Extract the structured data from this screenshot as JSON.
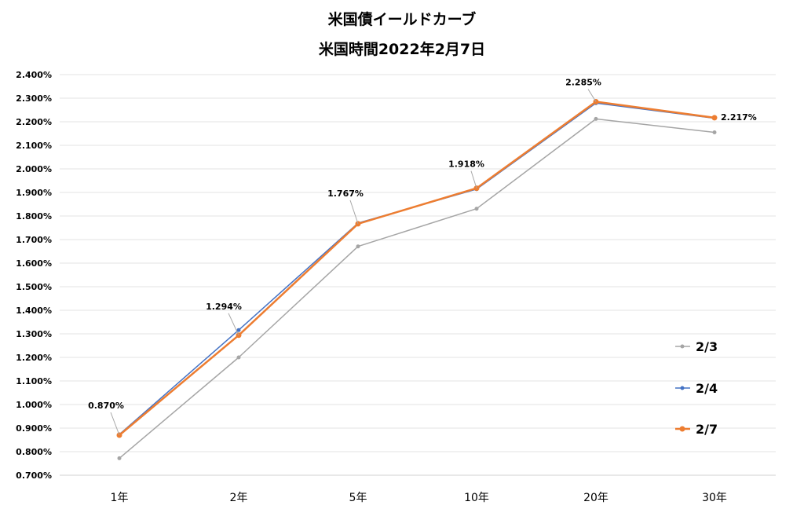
{
  "chart_data": {
    "type": "line",
    "title": "米国債イールドカーブ",
    "subtitle": "米国時間2022年2月7日",
    "categories": [
      "1年",
      "2年",
      "5年",
      "10年",
      "20年",
      "30年"
    ],
    "ylim": [
      0.7,
      2.4
    ],
    "yticks": [
      "0.700%",
      "0.800%",
      "0.900%",
      "1.000%",
      "1.100%",
      "1.200%",
      "1.300%",
      "1.400%",
      "1.500%",
      "1.600%",
      "1.700%",
      "1.800%",
      "1.900%",
      "2.000%",
      "2.100%",
      "2.200%",
      "2.300%",
      "2.400%"
    ],
    "grid": true,
    "legend_position": "right",
    "series": [
      {
        "name": "2/3",
        "color": "#a5a5a5",
        "values": [
          0.772,
          1.2,
          1.671,
          1.831,
          2.212,
          2.155
        ]
      },
      {
        "name": "2/4",
        "color": "#4472c4",
        "values": [
          0.873,
          1.316,
          1.77,
          1.914,
          2.279,
          2.215
        ]
      },
      {
        "name": "2/7",
        "color": "#ed7d31",
        "values": [
          0.87,
          1.294,
          1.767,
          1.918,
          2.285,
          2.217
        ]
      }
    ],
    "data_labels": [
      "0.870%",
      "1.294%",
      "1.767%",
      "1.918%",
      "2.285%",
      "2.217%"
    ]
  }
}
